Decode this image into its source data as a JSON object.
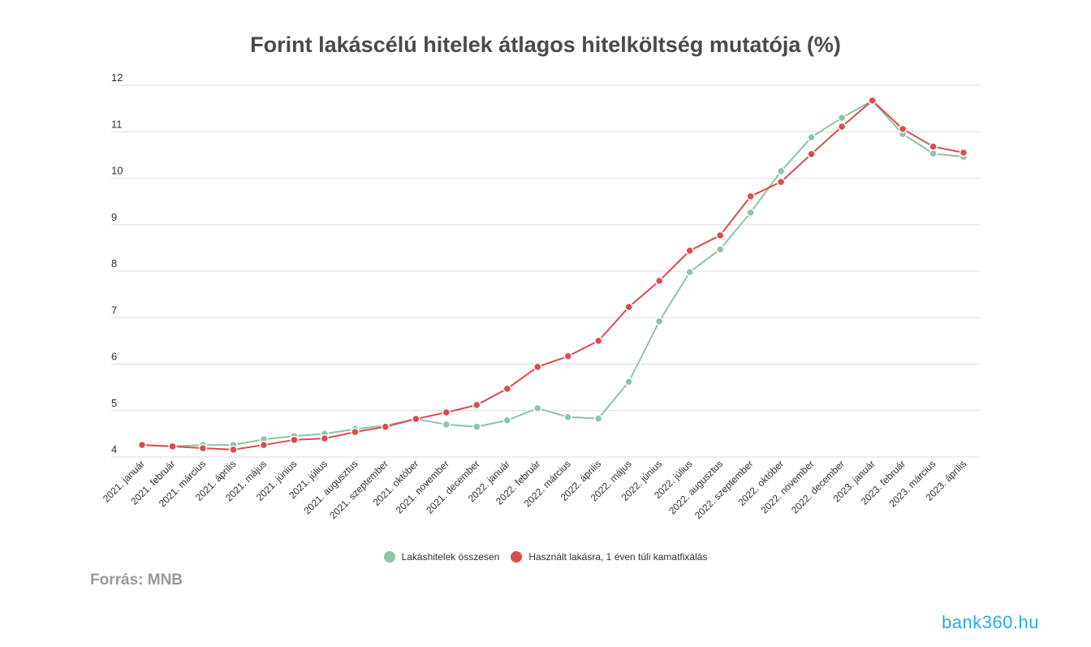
{
  "chart_data": {
    "type": "line",
    "title": "Forint lakáscélú hitelek átlagos hitelköltség mutatója (%)",
    "xlabel": "",
    "ylabel": "",
    "ylim": [
      4,
      12
    ],
    "yticks": [
      4,
      5,
      6,
      7,
      8,
      9,
      10,
      11,
      12
    ],
    "grid": true,
    "legend_position": "bottom",
    "categories": [
      "2021. január",
      "2021. február",
      "2021. március",
      "2021. április",
      "2021. május",
      "2021. június",
      "2021. július",
      "2021. augusztus",
      "2021. szeptember",
      "2021. október",
      "2021. november",
      "2021. december",
      "2022. január",
      "2022. február",
      "2022. március",
      "2022. április",
      "2022. május",
      "2022. június",
      "2022. július",
      "2022. augusztus",
      "2022. szeptember",
      "2022. október",
      "2022. november",
      "2022. december",
      "2023. január",
      "2023. február",
      "2023. március",
      "2023. április"
    ],
    "series": [
      {
        "name": "Lakáshitelek összesen",
        "color": "#8cc5a5",
        "values": [
          4.26,
          4.23,
          4.26,
          4.26,
          4.38,
          4.45,
          4.5,
          4.6,
          4.68,
          4.82,
          4.7,
          4.65,
          4.79,
          5.05,
          4.86,
          4.83,
          5.62,
          6.92,
          7.98,
          8.47,
          9.26,
          10.15,
          10.88,
          11.3,
          11.67,
          10.95,
          10.53,
          10.46
        ]
      },
      {
        "name": "Használt lakásra, 1 éven túli kamatfixálás",
        "color": "#dd4b50",
        "values": [
          4.26,
          4.23,
          4.19,
          4.16,
          4.26,
          4.37,
          4.4,
          4.54,
          4.65,
          4.82,
          4.96,
          5.12,
          5.47,
          5.94,
          6.17,
          6.5,
          7.23,
          7.79,
          8.44,
          8.77,
          9.61,
          9.92,
          10.52,
          11.11,
          11.67,
          11.06,
          10.68,
          10.55
        ]
      }
    ]
  },
  "source": "Forrás: MNB",
  "logo": "bank360.hu"
}
